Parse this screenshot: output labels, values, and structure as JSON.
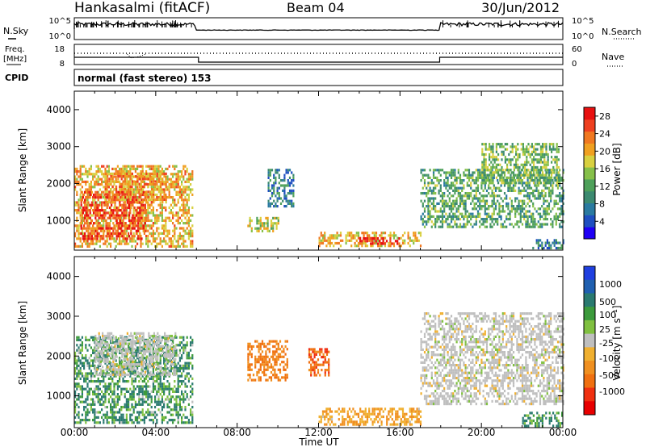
{
  "header": {
    "station": "Hankasalmi (fitACF)",
    "beam": "Beam 04",
    "date": "30/Jun/2012"
  },
  "panels": {
    "nsky": {
      "left_label": "N.Sky",
      "right_label": "N.Search",
      "ticks_left": [
        "10^5",
        "10^0"
      ],
      "ticks_right": [
        "10^5",
        "10^0"
      ]
    },
    "freq": {
      "left_label_1": "Freq.",
      "left_label_2": "[MHz]",
      "right_label": "Nave",
      "ticks_left": [
        "18",
        "8"
      ],
      "ticks_right": [
        "60",
        "0"
      ]
    },
    "cpid": {
      "label": "CPID",
      "text": "normal (fast stereo) 153"
    }
  },
  "colors": {
    "power": [
      "#1f00f5",
      "#1f4fc0",
      "#2a7aa0",
      "#3c8a70",
      "#4ea05a",
      "#86c04a",
      "#d8d040",
      "#f0a020",
      "#f07820",
      "#ee4020",
      "#e81010"
    ],
    "velocity": [
      "#1f3fe0",
      "#2060b0",
      "#2a7a70",
      "#3c9a3c",
      "#80c040",
      "#bfbfbf",
      "#f0b030",
      "#f09020",
      "#f07010",
      "#f03010",
      "#e80000"
    ]
  },
  "chart_data": [
    {
      "type": "heatmap",
      "name": "power",
      "xlabel": "",
      "ylabel": "Slant Range [km]",
      "xlim": [
        "00:00",
        "00:00"
      ],
      "ylim": [
        200,
        4500
      ],
      "yticks": [
        "1000",
        "2000",
        "3000",
        "4000"
      ],
      "colorbar": {
        "label": "Power [dB]",
        "ticks": [
          "4",
          "8",
          "12",
          "16",
          "20",
          "24",
          "28"
        ],
        "range": [
          0,
          30
        ]
      },
      "regions": [
        {
          "t0": 0.0,
          "t1": 5.8,
          "r0": 300,
          "r1": 2500,
          "value": 20
        },
        {
          "t0": 0.3,
          "t1": 3.5,
          "r0": 500,
          "r1": 1800,
          "value": 26
        },
        {
          "t0": 1.5,
          "t1": 4.5,
          "r0": 1500,
          "r1": 2300,
          "value": 22
        },
        {
          "t0": 8.5,
          "t1": 10.0,
          "r0": 700,
          "r1": 1100,
          "value": 16
        },
        {
          "t0": 9.5,
          "t1": 10.8,
          "r0": 1400,
          "r1": 2400,
          "value": 8
        },
        {
          "t0": 12.0,
          "t1": 17.0,
          "r0": 300,
          "r1": 700,
          "value": 20
        },
        {
          "t0": 14.0,
          "t1": 16.0,
          "r0": 350,
          "r1": 550,
          "value": 28
        },
        {
          "t0": 17.0,
          "t1": 24.0,
          "r0": 800,
          "r1": 2400,
          "value": 12
        },
        {
          "t0": 20.0,
          "t1": 23.8,
          "r0": 2000,
          "r1": 3100,
          "value": 14
        },
        {
          "t0": 22.5,
          "t1": 24.0,
          "r0": 250,
          "r1": 500,
          "value": 8
        }
      ]
    },
    {
      "type": "heatmap",
      "name": "velocity",
      "xlabel": "Time UT",
      "ylabel": "Slant Range [km]",
      "xlim": [
        "00:00",
        "00:00"
      ],
      "xticks": [
        "00:00",
        "04:00",
        "08:00",
        "12:00",
        "16:00",
        "20:00",
        "00:00"
      ],
      "ylim": [
        200,
        4500
      ],
      "yticks": [
        "1000",
        "2000",
        "3000",
        "4000"
      ],
      "colorbar": {
        "label": "Velocity [m s⁻¹]",
        "ticks": [
          "1000",
          "500",
          "100",
          "25",
          "-25",
          "-100",
          "-500",
          "-1000"
        ]
      },
      "regions": [
        {
          "t0": 0.0,
          "t1": 5.8,
          "r0": 300,
          "r1": 2500,
          "value": 100
        },
        {
          "t0": 1.0,
          "t1": 5.0,
          "r0": 1500,
          "r1": 2600,
          "value": 0
        },
        {
          "t0": 8.5,
          "t1": 10.5,
          "r0": 1400,
          "r1": 2400,
          "value": -300
        },
        {
          "t0": 11.5,
          "t1": 12.5,
          "r0": 1500,
          "r1": 2200,
          "value": -500
        },
        {
          "t0": 12.0,
          "t1": 17.0,
          "r0": 300,
          "r1": 700,
          "value": -100
        },
        {
          "t0": 17.0,
          "t1": 24.0,
          "r0": 800,
          "r1": 3100,
          "value": 0
        },
        {
          "t0": 22.0,
          "t1": 24.0,
          "r0": 250,
          "r1": 600,
          "value": 100
        }
      ]
    }
  ]
}
